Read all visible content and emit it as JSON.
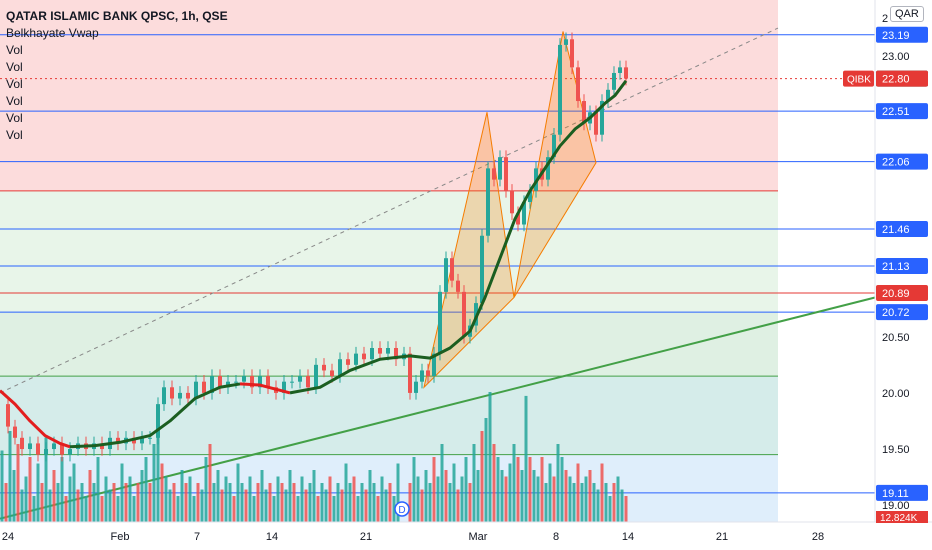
{
  "header": {
    "title": "QATAR ISLAMIC BANK QPSC, 1h, QSE",
    "indicator": "Belkhayate Vwap",
    "vol_labels": [
      "Vol",
      "Vol",
      "Vol",
      "Vol",
      "Vol",
      "Vol"
    ],
    "currency": "QAR",
    "top_tick": "2"
  },
  "colors": {
    "up": "#26a69a",
    "down": "#ef5350",
    "vwap_green": "#1b5e20",
    "vwap_red": "#e31e1e",
    "pattern": "#f57c00",
    "trend": "#43a047",
    "blue": "#2962ff",
    "red_line": "#e53935"
  },
  "chart_data": {
    "type": "candlestick",
    "title": "QATAR ISLAMIC BANK QPSC, 1h, QSE",
    "y_axis": {
      "min": 18.85,
      "max": 23.5,
      "ticks": [
        "23.00",
        "20.50",
        "20.00",
        "19.50",
        "19.00"
      ]
    },
    "x_axis": {
      "ticks": [
        "24",
        "Feb",
        "7",
        "14",
        "21",
        "Mar",
        "8",
        "14",
        "21",
        "28"
      ]
    },
    "price_labels": [
      {
        "value": 23.19,
        "text": "23.19",
        "style": "blue"
      },
      {
        "value": 22.8,
        "text": "22.80",
        "style": "dark"
      },
      {
        "value": 22.51,
        "text": "22.51",
        "style": "blue"
      },
      {
        "value": 22.06,
        "text": "22.06",
        "style": "blue"
      },
      {
        "value": 21.46,
        "text": "21.46",
        "style": "blue"
      },
      {
        "value": 21.13,
        "text": "21.13",
        "style": "blue"
      },
      {
        "value": 20.89,
        "text": "20.89",
        "style": "red"
      },
      {
        "value": 20.72,
        "text": "20.72",
        "style": "blue"
      },
      {
        "value": 19.11,
        "text": "19.11",
        "style": "blue"
      }
    ],
    "last_price": {
      "symbol": "QIBK",
      "value": 22.8,
      "text": "22.80"
    },
    "volume_label": "12.824K",
    "dividend_marker": "D",
    "close_path": [
      [
        0,
        19.9
      ],
      [
        8,
        19.7
      ],
      [
        15,
        19.6
      ],
      [
        22,
        19.5
      ],
      [
        30,
        19.55
      ],
      [
        38,
        19.45
      ],
      [
        46,
        19.5
      ],
      [
        54,
        19.55
      ],
      [
        62,
        19.45
      ],
      [
        70,
        19.5
      ],
      [
        78,
        19.55
      ],
      [
        86,
        19.5
      ],
      [
        94,
        19.55
      ],
      [
        102,
        19.5
      ],
      [
        110,
        19.6
      ],
      [
        118,
        19.55
      ],
      [
        126,
        19.6
      ],
      [
        134,
        19.55
      ],
      [
        142,
        19.6
      ],
      [
        150,
        19.6
      ],
      [
        158,
        19.9
      ],
      [
        164,
        20.05
      ],
      [
        172,
        19.95
      ],
      [
        180,
        20.0
      ],
      [
        188,
        19.95
      ],
      [
        196,
        20.1
      ],
      [
        204,
        20.0
      ],
      [
        212,
        20.15
      ],
      [
        220,
        20.05
      ],
      [
        228,
        20.1
      ],
      [
        236,
        20.1
      ],
      [
        244,
        20.15
      ],
      [
        252,
        20.05
      ],
      [
        260,
        20.15
      ],
      [
        268,
        20.05
      ],
      [
        276,
        20.0
      ],
      [
        284,
        20.1
      ],
      [
        292,
        20.1
      ],
      [
        300,
        20.15
      ],
      [
        308,
        20.05
      ],
      [
        316,
        20.25
      ],
      [
        324,
        20.2
      ],
      [
        332,
        20.15
      ],
      [
        340,
        20.3
      ],
      [
        348,
        20.25
      ],
      [
        356,
        20.35
      ],
      [
        364,
        20.3
      ],
      [
        372,
        20.4
      ],
      [
        380,
        20.35
      ],
      [
        388,
        20.4
      ],
      [
        396,
        20.3
      ],
      [
        404,
        20.35
      ],
      [
        410,
        20.0
      ],
      [
        416,
        20.1
      ],
      [
        422,
        20.2
      ],
      [
        428,
        20.15
      ],
      [
        434,
        20.35
      ],
      [
        440,
        20.9
      ],
      [
        446,
        21.2
      ],
      [
        452,
        21.0
      ],
      [
        458,
        20.9
      ],
      [
        464,
        20.5
      ],
      [
        470,
        20.6
      ],
      [
        476,
        20.8
      ],
      [
        482,
        21.4
      ],
      [
        488,
        22.0
      ],
      [
        494,
        21.9
      ],
      [
        500,
        22.1
      ],
      [
        506,
        21.8
      ],
      [
        512,
        21.6
      ],
      [
        518,
        21.5
      ],
      [
        524,
        21.7
      ],
      [
        530,
        21.8
      ],
      [
        536,
        22.0
      ],
      [
        542,
        21.9
      ],
      [
        548,
        22.1
      ],
      [
        554,
        22.3
      ],
      [
        560,
        23.1
      ],
      [
        566,
        23.15
      ],
      [
        572,
        22.9
      ],
      [
        578,
        22.6
      ],
      [
        584,
        22.4
      ],
      [
        590,
        22.5
      ],
      [
        596,
        22.3
      ],
      [
        602,
        22.6
      ],
      [
        608,
        22.7
      ],
      [
        614,
        22.85
      ],
      [
        620,
        22.9
      ],
      [
        626,
        22.8
      ]
    ],
    "vwap_red": [
      [
        0,
        20.02
      ],
      [
        15,
        19.9
      ],
      [
        30,
        19.75
      ],
      [
        45,
        19.62
      ],
      [
        60,
        19.55
      ],
      [
        70,
        19.52
      ]
    ],
    "vwap_green": [
      [
        70,
        19.52
      ],
      [
        95,
        19.53
      ],
      [
        120,
        19.56
      ],
      [
        150,
        19.62
      ],
      [
        170,
        19.75
      ],
      [
        195,
        19.95
      ],
      [
        220,
        20.05
      ],
      [
        240,
        20.08
      ]
    ],
    "vwap_red2": [
      [
        240,
        20.08
      ],
      [
        260,
        20.07
      ],
      [
        290,
        20.0
      ]
    ],
    "vwap_green2": [
      [
        290,
        20.0
      ],
      [
        320,
        20.05
      ],
      [
        350,
        20.2
      ],
      [
        380,
        20.3
      ],
      [
        410,
        20.33
      ],
      [
        430,
        20.31
      ],
      [
        450,
        20.4
      ],
      [
        470,
        20.55
      ],
      [
        485,
        20.85
      ],
      [
        500,
        21.2
      ],
      [
        515,
        21.55
      ],
      [
        530,
        21.8
      ],
      [
        545,
        22.0
      ],
      [
        560,
        22.2
      ],
      [
        575,
        22.35
      ],
      [
        590,
        22.45
      ],
      [
        605,
        22.58
      ],
      [
        615,
        22.65
      ],
      [
        626,
        22.78
      ]
    ],
    "volumes": [
      [
        2,
        0.55
      ],
      [
        6,
        0.3
      ],
      [
        10,
        0.7
      ],
      [
        14,
        0.4
      ],
      [
        18,
        0.6
      ],
      [
        22,
        0.25
      ],
      [
        26,
        0.35
      ],
      [
        30,
        0.5
      ],
      [
        34,
        0.2
      ],
      [
        38,
        0.45
      ],
      [
        42,
        0.3
      ],
      [
        46,
        0.65
      ],
      [
        50,
        0.25
      ],
      [
        54,
        0.4
      ],
      [
        58,
        0.3
      ],
      [
        62,
        0.5
      ],
      [
        66,
        0.2
      ],
      [
        70,
        0.35
      ],
      [
        74,
        0.45
      ],
      [
        78,
        0.25
      ],
      [
        82,
        0.3
      ],
      [
        86,
        0.2
      ],
      [
        90,
        0.4
      ],
      [
        94,
        0.3
      ],
      [
        98,
        0.5
      ],
      [
        102,
        0.2
      ],
      [
        106,
        0.35
      ],
      [
        110,
        0.25
      ],
      [
        114,
        0.3
      ],
      [
        118,
        0.2
      ],
      [
        122,
        0.45
      ],
      [
        126,
        0.3
      ],
      [
        130,
        0.35
      ],
      [
        134,
        0.2
      ],
      [
        138,
        0.3
      ],
      [
        142,
        0.4
      ],
      [
        146,
        0.5
      ],
      [
        150,
        0.3
      ],
      [
        154,
        0.6
      ],
      [
        158,
        0.75
      ],
      [
        162,
        0.45
      ],
      [
        166,
        0.35
      ],
      [
        170,
        0.25
      ],
      [
        174,
        0.3
      ],
      [
        178,
        0.2
      ],
      [
        182,
        0.4
      ],
      [
        186,
        0.3
      ],
      [
        190,
        0.35
      ],
      [
        194,
        0.2
      ],
      [
        198,
        0.3
      ],
      [
        202,
        0.25
      ],
      [
        206,
        0.5
      ],
      [
        210,
        0.6
      ],
      [
        214,
        0.3
      ],
      [
        218,
        0.4
      ],
      [
        222,
        0.25
      ],
      [
        226,
        0.35
      ],
      [
        230,
        0.3
      ],
      [
        234,
        0.2
      ],
      [
        238,
        0.45
      ],
      [
        242,
        0.3
      ],
      [
        246,
        0.25
      ],
      [
        250,
        0.35
      ],
      [
        254,
        0.2
      ],
      [
        258,
        0.3
      ],
      [
        262,
        0.4
      ],
      [
        266,
        0.25
      ],
      [
        270,
        0.3
      ],
      [
        274,
        0.2
      ],
      [
        278,
        0.35
      ],
      [
        282,
        0.3
      ],
      [
        286,
        0.25
      ],
      [
        290,
        0.4
      ],
      [
        294,
        0.3
      ],
      [
        298,
        0.2
      ],
      [
        302,
        0.35
      ],
      [
        306,
        0.25
      ],
      [
        310,
        0.3
      ],
      [
        314,
        0.4
      ],
      [
        318,
        0.2
      ],
      [
        322,
        0.3
      ],
      [
        326,
        0.25
      ],
      [
        330,
        0.35
      ],
      [
        334,
        0.2
      ],
      [
        338,
        0.3
      ],
      [
        342,
        0.25
      ],
      [
        346,
        0.45
      ],
      [
        350,
        0.3
      ],
      [
        354,
        0.35
      ],
      [
        358,
        0.2
      ],
      [
        362,
        0.3
      ],
      [
        366,
        0.25
      ],
      [
        370,
        0.4
      ],
      [
        374,
        0.3
      ],
      [
        378,
        0.2
      ],
      [
        382,
        0.35
      ],
      [
        386,
        0.25
      ],
      [
        390,
        0.3
      ],
      [
        394,
        0.2
      ],
      [
        398,
        0.45
      ],
      [
        410,
        0.3
      ],
      [
        414,
        0.5
      ],
      [
        418,
        0.35
      ],
      [
        422,
        0.25
      ],
      [
        426,
        0.4
      ],
      [
        430,
        0.3
      ],
      [
        434,
        0.5
      ],
      [
        438,
        0.35
      ],
      [
        442,
        0.6
      ],
      [
        446,
        0.4
      ],
      [
        450,
        0.3
      ],
      [
        454,
        0.45
      ],
      [
        458,
        0.25
      ],
      [
        462,
        0.35
      ],
      [
        466,
        0.5
      ],
      [
        470,
        0.3
      ],
      [
        474,
        0.6
      ],
      [
        478,
        0.4
      ],
      [
        482,
        0.7
      ],
      [
        486,
        0.8
      ],
      [
        490,
        1.0
      ],
      [
        494,
        0.6
      ],
      [
        498,
        0.5
      ],
      [
        502,
        0.4
      ],
      [
        506,
        0.35
      ],
      [
        510,
        0.45
      ],
      [
        514,
        0.6
      ],
      [
        518,
        0.5
      ],
      [
        522,
        0.4
      ],
      [
        526,
        0.97
      ],
      [
        530,
        0.5
      ],
      [
        534,
        0.4
      ],
      [
        538,
        0.35
      ],
      [
        542,
        0.5
      ],
      [
        546,
        0.3
      ],
      [
        550,
        0.45
      ],
      [
        554,
        0.35
      ],
      [
        558,
        0.6
      ],
      [
        562,
        0.5
      ],
      [
        566,
        0.4
      ],
      [
        570,
        0.35
      ],
      [
        574,
        0.3
      ],
      [
        578,
        0.45
      ],
      [
        582,
        0.3
      ],
      [
        586,
        0.35
      ],
      [
        590,
        0.4
      ],
      [
        594,
        0.3
      ],
      [
        598,
        0.25
      ],
      [
        602,
        0.45
      ],
      [
        606,
        0.3
      ],
      [
        610,
        0.2
      ],
      [
        614,
        0.3
      ],
      [
        618,
        0.35
      ],
      [
        622,
        0.25
      ],
      [
        626,
        0.2
      ]
    ]
  }
}
